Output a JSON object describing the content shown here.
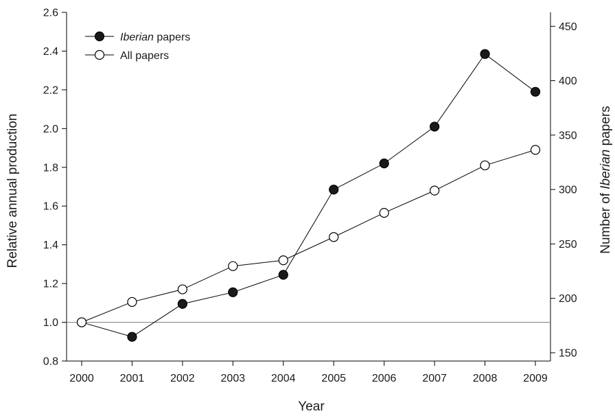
{
  "chart_data": {
    "type": "line",
    "x": [
      2000,
      2001,
      2002,
      2003,
      2004,
      2005,
      2006,
      2007,
      2008,
      2009
    ],
    "xlabel": "Year",
    "ylabel": "Relative annual production",
    "y2label_parts": [
      "Number of ",
      "Iberian",
      " papers"
    ],
    "ylim": [
      0.8,
      2.6
    ],
    "yticks": [
      0.8,
      1.0,
      1.2,
      1.4,
      1.6,
      1.8,
      2.0,
      2.2,
      2.4,
      2.6
    ],
    "ytick_labels": [
      "0.8",
      "1.0",
      "1.2",
      "1.4",
      "1.6",
      "1.8",
      "2.0",
      "2.2",
      "2.4",
      "2.6"
    ],
    "y2ticks": [
      150,
      200,
      250,
      300,
      350,
      400,
      450
    ],
    "y2tick_labels": [
      "150",
      "200",
      "250",
      "300",
      "350",
      "400",
      "450"
    ],
    "y2_per_unit": 178,
    "reference_line": 1.0,
    "series": [
      {
        "name_parts": [
          "Iberian",
          " papers"
        ],
        "marker": "filled-circle",
        "values": [
          1.0,
          0.925,
          1.095,
          1.155,
          1.245,
          1.685,
          1.82,
          2.01,
          2.385,
          2.19
        ]
      },
      {
        "name_parts": [
          "All papers"
        ],
        "marker": "open-circle",
        "values": [
          1.0,
          1.105,
          1.17,
          1.29,
          1.32,
          1.44,
          1.565,
          1.68,
          1.81,
          1.89
        ]
      }
    ],
    "legend_position": "top-left",
    "colors": {
      "marker_fill_filled": "#1a1a1a",
      "marker_fill_open": "#ffffff",
      "line": "#000000",
      "reference": "#8a8a8a"
    }
  }
}
